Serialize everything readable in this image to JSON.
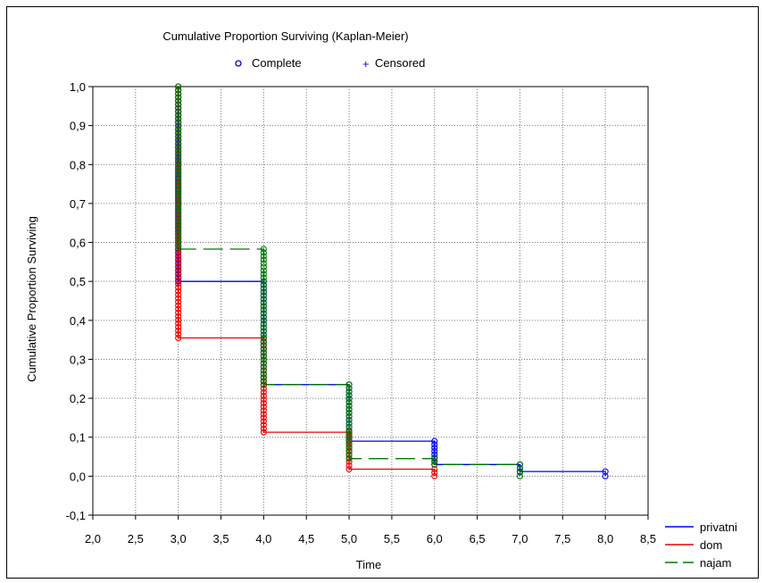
{
  "chart_data": {
    "type": "line",
    "title": "Cumulative Proportion Surviving (Kaplan-Meier)",
    "xlabel": "Time",
    "ylabel": "Cumulative Proportion Surviving",
    "xlim": [
      2.0,
      8.5
    ],
    "ylim": [
      -0.1,
      1.0
    ],
    "xticks": [
      "2,0",
      "2,5",
      "3,0",
      "3,5",
      "4,0",
      "4,5",
      "5,0",
      "5,5",
      "6,0",
      "6,5",
      "7,0",
      "7,5",
      "8,0",
      "8,5"
    ],
    "yticks": [
      "1,0",
      "0,9",
      "0,8",
      "0,7",
      "0,6",
      "0,5",
      "0,4",
      "0,3",
      "0,2",
      "0,1",
      "0,0",
      "-0,1"
    ],
    "grid": true,
    "marker_legend": [
      {
        "symbol": "o",
        "label": "Complete"
      },
      {
        "symbol": "+",
        "label": "Censored"
      }
    ],
    "legend_position": "bottom-right",
    "series": [
      {
        "name": "privatni",
        "color": "#0000ee",
        "dash": "solid",
        "steps": [
          [
            3.0,
            1.0
          ],
          [
            3.0,
            0.5
          ],
          [
            4.0,
            0.5
          ],
          [
            4.0,
            0.235
          ],
          [
            5.0,
            0.235
          ],
          [
            5.0,
            0.09
          ],
          [
            6.0,
            0.09
          ],
          [
            6.0,
            0.03
          ],
          [
            7.0,
            0.03
          ],
          [
            7.0,
            0.012
          ],
          [
            8.0,
            0.012
          ],
          [
            8.0,
            0.0
          ]
        ]
      },
      {
        "name": "dom",
        "color": "#ee0000",
        "dash": "solid",
        "steps": [
          [
            3.0,
            1.0
          ],
          [
            3.0,
            0.355
          ],
          [
            4.0,
            0.355
          ],
          [
            4.0,
            0.113
          ],
          [
            5.0,
            0.113
          ],
          [
            5.0,
            0.018
          ],
          [
            6.0,
            0.018
          ],
          [
            6.0,
            0.0
          ]
        ]
      },
      {
        "name": "najam",
        "color": "#007700",
        "dash": "dashed",
        "steps": [
          [
            3.0,
            1.0
          ],
          [
            3.0,
            0.583
          ],
          [
            4.0,
            0.583
          ],
          [
            4.0,
            0.235
          ],
          [
            5.0,
            0.235
          ],
          [
            5.0,
            0.045
          ],
          [
            6.0,
            0.045
          ],
          [
            6.0,
            0.03
          ],
          [
            7.0,
            0.03
          ],
          [
            7.0,
            0.0
          ]
        ]
      }
    ]
  }
}
